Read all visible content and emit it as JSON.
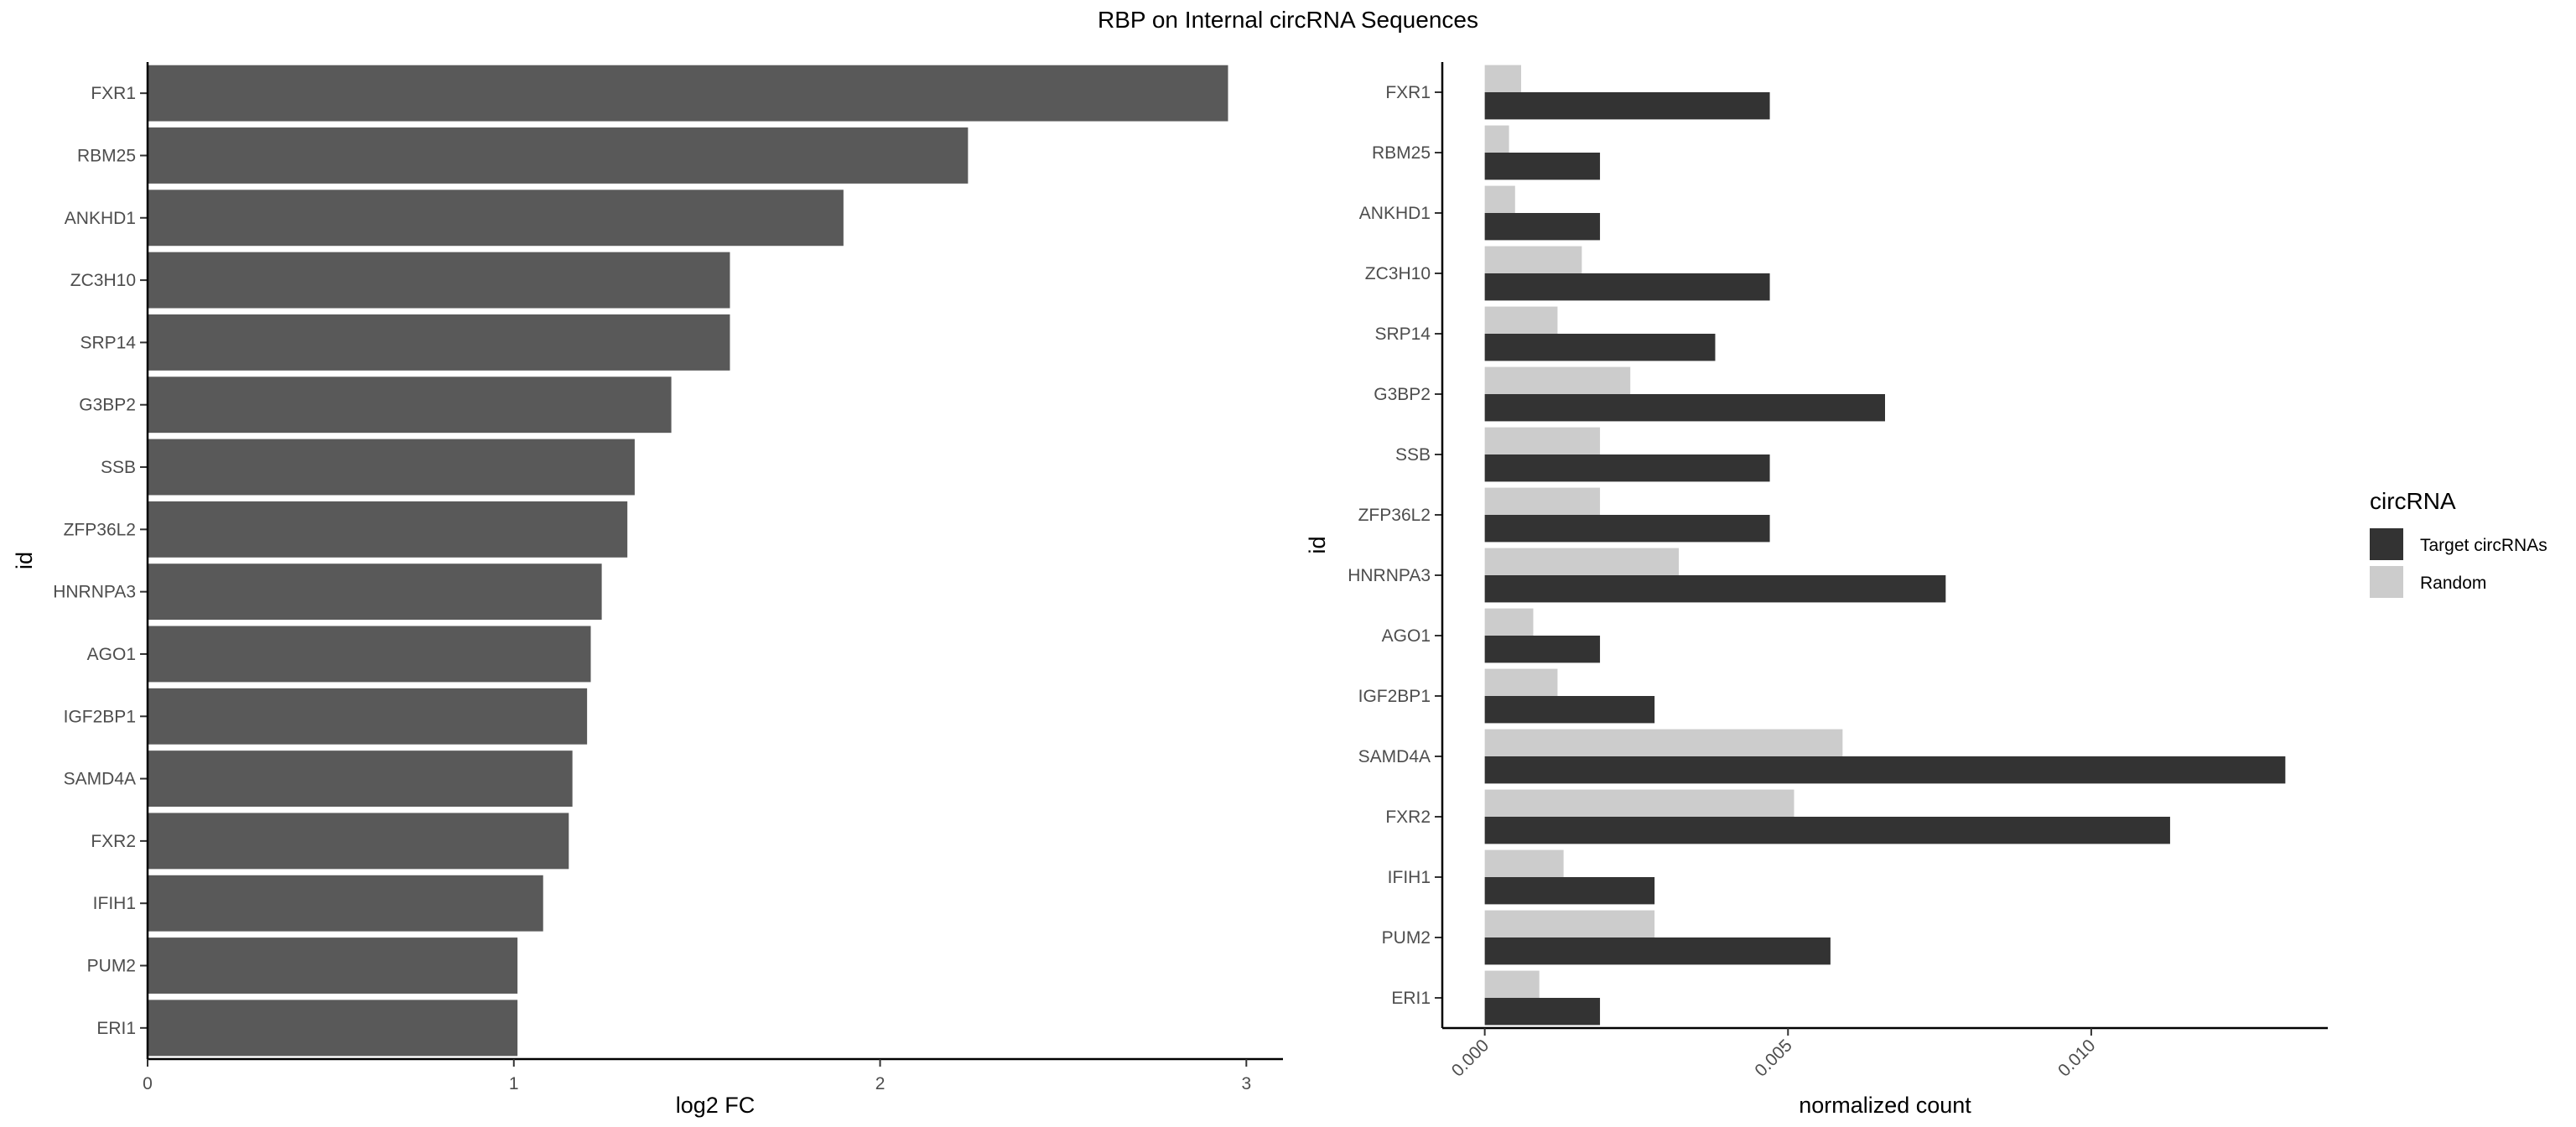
{
  "chart_data": [
    {
      "type": "bar",
      "orientation": "horizontal",
      "title": "RBP on Internal circRNA Sequences",
      "xlabel": "log2 FC",
      "ylabel": "id",
      "xlim": [
        0,
        3.1
      ],
      "xticks": [
        "0",
        "1",
        "2",
        "3"
      ],
      "categories": [
        "FXR1",
        "RBM25",
        "ANKHD1",
        "ZC3H10",
        "SRP14",
        "G3BP2",
        "SSB",
        "ZFP36L2",
        "HNRNPA3",
        "AGO1",
        "IGF2BP1",
        "SAMD4A",
        "FXR2",
        "IFIH1",
        "PUM2",
        "ERI1"
      ],
      "values": [
        2.95,
        2.24,
        1.9,
        1.59,
        1.59,
        1.43,
        1.33,
        1.31,
        1.24,
        1.21,
        1.2,
        1.16,
        1.15,
        1.08,
        1.01,
        1.01
      ],
      "colors": {
        "bar": "#595959"
      },
      "grid": false
    },
    {
      "type": "bar",
      "orientation": "horizontal",
      "xlabel": "normalized count",
      "ylabel": "id",
      "xlim": [
        -0.0007,
        0.0139
      ],
      "xticks": [
        "0.000",
        "0.005",
        "0.010"
      ],
      "categories": [
        "FXR1",
        "RBM25",
        "ANKHD1",
        "ZC3H10",
        "SRP14",
        "G3BP2",
        "SSB",
        "ZFP36L2",
        "HNRNPA3",
        "AGO1",
        "IGF2BP1",
        "SAMD4A",
        "FXR2",
        "IFIH1",
        "PUM2",
        "ERI1"
      ],
      "series": [
        {
          "name": "Target circRNAs",
          "color": "#333333",
          "values": [
            0.0047,
            0.0019,
            0.0019,
            0.0047,
            0.0038,
            0.0066,
            0.0047,
            0.0047,
            0.0076,
            0.0019,
            0.0028,
            0.0132,
            0.0113,
            0.0028,
            0.0057,
            0.0019
          ]
        },
        {
          "name": "Random",
          "color": "#cccccc",
          "values": [
            0.0006,
            0.0004,
            0.0005,
            0.0016,
            0.0012,
            0.0024,
            0.0019,
            0.0019,
            0.0032,
            0.0008,
            0.0012,
            0.0059,
            0.0051,
            0.0013,
            0.0028,
            0.0009
          ]
        }
      ],
      "legend": {
        "title": "circRNA",
        "position": "right"
      },
      "grid": false
    }
  ]
}
